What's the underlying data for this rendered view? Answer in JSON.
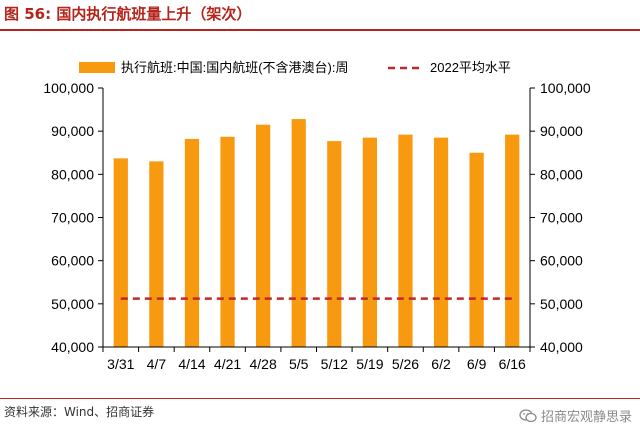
{
  "header": {
    "figure_label": "图 56:",
    "figure_title": "国内执行航班量上升（架次）"
  },
  "chart_data": {
    "type": "bar",
    "categories": [
      "3/31",
      "4/7",
      "4/14",
      "4/21",
      "4/28",
      "5/5",
      "5/12",
      "5/19",
      "5/26",
      "6/2",
      "6/9",
      "6/16"
    ],
    "series": [
      {
        "name": "执行航班:中国:国内航班(不含港澳台):周",
        "type": "bar",
        "values": [
          83700,
          83000,
          88200,
          88700,
          91500,
          92800,
          87700,
          88500,
          89200,
          88500,
          85000,
          89200
        ],
        "color": "#f79a10"
      },
      {
        "name": "2022平均水平",
        "type": "line",
        "style": "dashed",
        "values": [
          51200,
          51200,
          51200,
          51200,
          51200,
          51200,
          51200,
          51200,
          51200,
          51200,
          51200,
          51200
        ],
        "color": "#c0282d"
      }
    ],
    "ylim": [
      40000,
      100000
    ],
    "yticks": [
      "40,000",
      "50,000",
      "60,000",
      "70,000",
      "80,000",
      "90,000",
      "100,000"
    ],
    "y2ticks": [
      "40,000",
      "50,000",
      "60,000",
      "70,000",
      "80,000",
      "90,000",
      "100,000"
    ],
    "legend_position": "top",
    "grid": false
  },
  "footer": {
    "source": "资料来源：Wind、招商证券",
    "watermark": "招商宏观静思录"
  }
}
